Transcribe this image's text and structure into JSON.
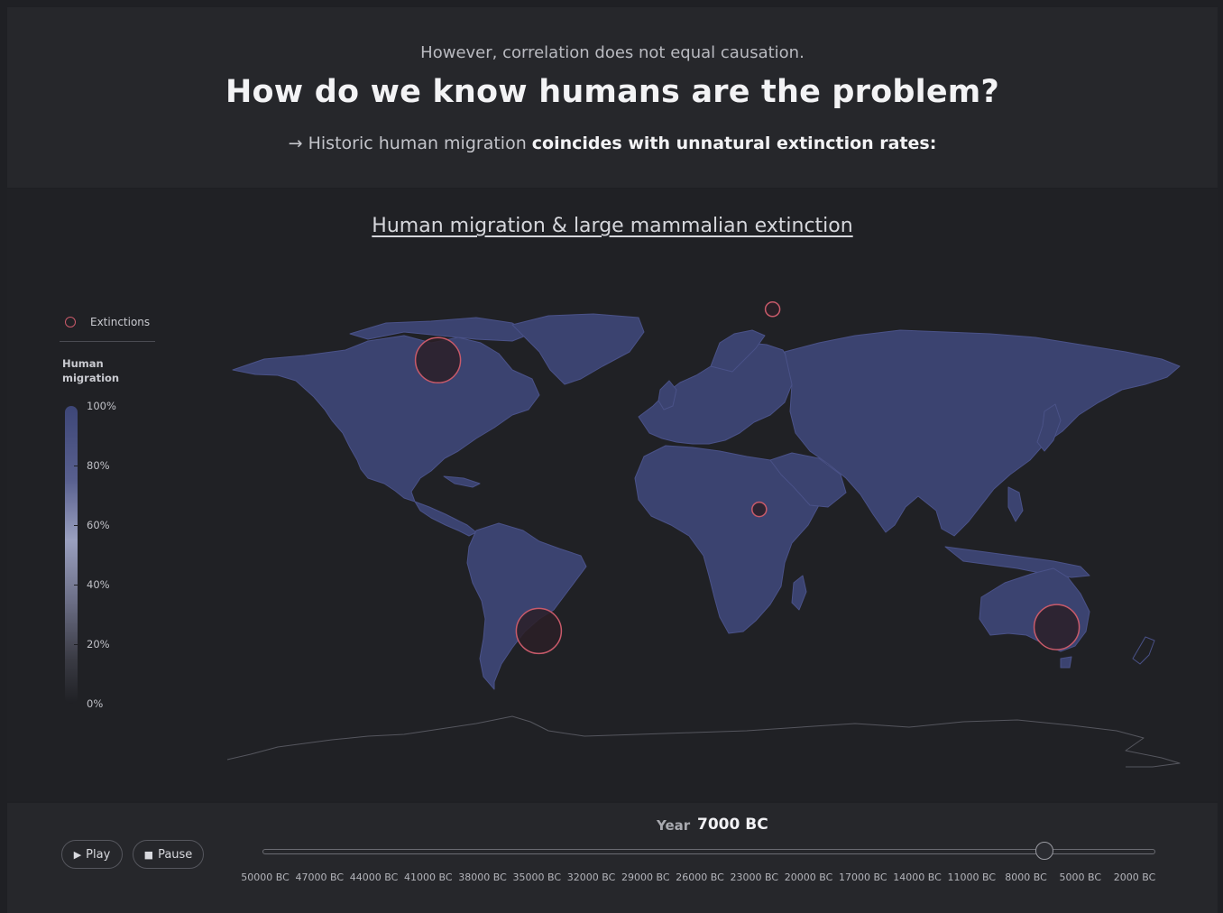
{
  "header": {
    "kicker": "However, correlation does not equal causation.",
    "headline": "How do we know humans are the problem?",
    "subline_arrow": "→",
    "subline_plain": "Historic human migration",
    "subline_strong": "coincides with unnatural extinction rates:"
  },
  "map": {
    "title": "Human migration & large mammalian extinction",
    "land_color": "#3b4370",
    "ocean_color": "#202125",
    "extinction_color": "#c85a6a",
    "extinction_sites": [
      {
        "region": "North America",
        "lat": 42,
        "lon": -100,
        "size": "large"
      },
      {
        "region": "South America",
        "lat": -27,
        "lon": -62,
        "size": "large"
      },
      {
        "region": "Australia",
        "lat": -26,
        "lon": 133,
        "size": "large"
      },
      {
        "region": "Europe",
        "lat": 55,
        "lon": 26,
        "size": "small"
      },
      {
        "region": "Central Africa",
        "lat": 4,
        "lon": 21,
        "size": "small"
      }
    ]
  },
  "legend": {
    "extinctions_label": "Extinctions",
    "migration_label": "Human migration",
    "ticks": [
      "100%",
      "80%",
      "60%",
      "40%",
      "20%",
      "0%"
    ]
  },
  "controls": {
    "play_label": "Play",
    "pause_label": "Pause",
    "play_icon": "play-icon",
    "pause_icon": "stop-icon",
    "year_label": "Year",
    "year_value": "7000 BC",
    "slider_value_fraction": 0.876,
    "axis_labels": [
      "50000 BC",
      "47000 BC",
      "44000 BC",
      "41000 BC",
      "38000 BC",
      "35000 BC",
      "32000 BC",
      "29000 BC",
      "26000 BC",
      "23000 BC",
      "20000 BC",
      "17000 BC",
      "14000 BC",
      "11000 BC",
      "8000 BC",
      "5000 BC",
      "2000 BC"
    ]
  }
}
